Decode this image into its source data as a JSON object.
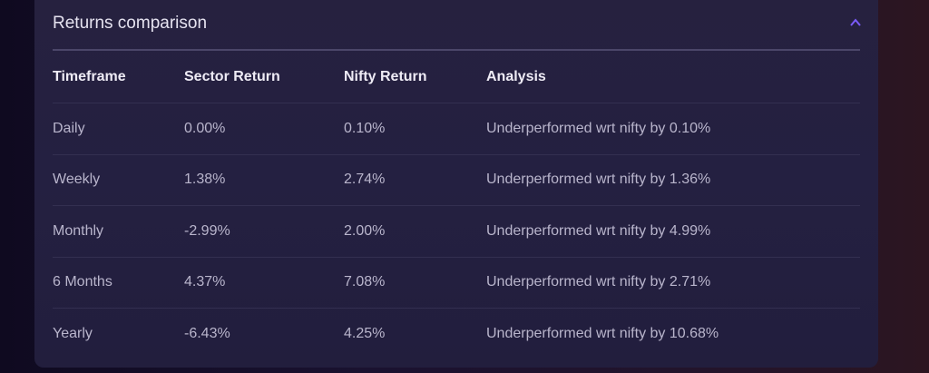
{
  "card": {
    "title": "Returns comparison",
    "collapse_icon": "chevron-up-icon",
    "accent": "#7c5cff"
  },
  "table": {
    "headers": [
      "Timeframe",
      "Sector Return",
      "Nifty Return",
      "Analysis"
    ],
    "rows": [
      [
        "Daily",
        "0.00%",
        "0.10%",
        "Underperformed wrt nifty by 0.10%"
      ],
      [
        "Weekly",
        "1.38%",
        "2.74%",
        "Underperformed wrt nifty by 1.36%"
      ],
      [
        "Monthly",
        "-2.99%",
        "2.00%",
        "Underperformed wrt nifty by 4.99%"
      ],
      [
        "6 Months",
        "4.37%",
        "7.08%",
        "Underperformed wrt nifty by 2.71%"
      ],
      [
        "Yearly",
        "-6.43%",
        "4.25%",
        "Underperformed wrt nifty by 10.68%"
      ]
    ]
  }
}
